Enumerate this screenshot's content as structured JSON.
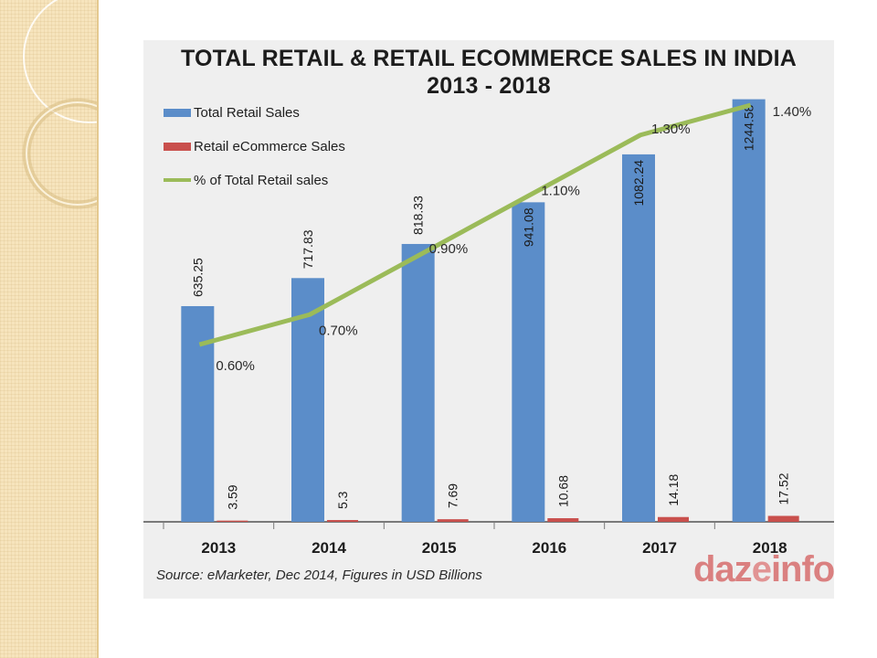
{
  "chart_data": {
    "type": "bar",
    "title": "TOTAL RETAIL & RETAIL ECOMMERCE SALES IN INDIA",
    "subtitle": "2013 - 2018",
    "categories": [
      "2013",
      "2014",
      "2015",
      "2016",
      "2017",
      "2018"
    ],
    "series": [
      {
        "name": "Total Retail Sales",
        "type": "bar",
        "color": "#5b8dc9",
        "values": [
          635.25,
          717.83,
          818.33,
          941.08,
          1082.24,
          1244.58
        ],
        "labels": [
          "635.25",
          "717.83",
          "818.33",
          "941.08",
          "1082.24",
          "1244.58"
        ]
      },
      {
        "name": "Retail eCommerce Sales",
        "type": "bar",
        "color": "#c9504d",
        "values": [
          3.59,
          5.3,
          7.69,
          10.68,
          14.18,
          17.52
        ],
        "labels": [
          "3.59",
          "5.3",
          "7.69",
          "10.68",
          "14.18",
          "17.52"
        ]
      },
      {
        "name": "% of Total Retail sales",
        "type": "line",
        "color": "#9bbb59",
        "values": [
          0.6,
          0.7,
          0.9,
          1.1,
          1.3,
          1.4
        ],
        "labels": [
          "0.60%",
          "0.70%",
          "0.90%",
          "1.10%",
          "1.30%",
          "1.40%"
        ]
      }
    ],
    "ylim": [
      0,
      1300
    ],
    "legend": "top-left",
    "grid": false,
    "source": "Source: eMarketer, Dec 2014, Figures in USD Billions"
  },
  "logo_text": "dazeinfo"
}
